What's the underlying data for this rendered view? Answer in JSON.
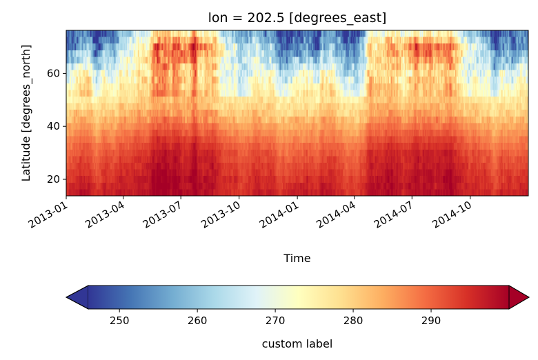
{
  "chart_data": {
    "type": "heatmap",
    "title": "lon = 202.5 [degrees_east]",
    "xlabel": "Time",
    "ylabel": "Latitude [degrees_north]",
    "x_range": [
      "2013-01-01",
      "2014-12-31"
    ],
    "x_ticks": [
      "2013-01",
      "2013-04",
      "2013-07",
      "2013-10",
      "2014-01",
      "2014-04",
      "2014-07",
      "2014-10"
    ],
    "ylim": [
      13.75,
      76.25
    ],
    "y_ticks": [
      20,
      40,
      60
    ],
    "lat_step": 2.5,
    "time_step_hours": 6,
    "colormap": "RdYlBu_r",
    "colorbar": {
      "label": "custom label",
      "range": [
        246.0,
        300.0
      ],
      "ticks": [
        250,
        260,
        270,
        280,
        290
      ],
      "extend": "both",
      "orientation": "horizontal"
    },
    "profiles": {
      "winter_latitudes": [
        15,
        20,
        25,
        30,
        35,
        40,
        45,
        50,
        55,
        60,
        65,
        70,
        75
      ],
      "winter_values": [
        296,
        294,
        292,
        290,
        287,
        284,
        280,
        276,
        273,
        268,
        258,
        251,
        248
      ],
      "summer_latitudes": [
        15,
        20,
        25,
        30,
        35,
        40,
        45,
        50,
        55,
        60,
        65,
        70,
        75
      ],
      "summer_values": [
        298,
        298,
        297,
        296,
        293,
        289,
        285,
        282,
        280,
        279,
        284,
        288,
        276
      ]
    }
  }
}
